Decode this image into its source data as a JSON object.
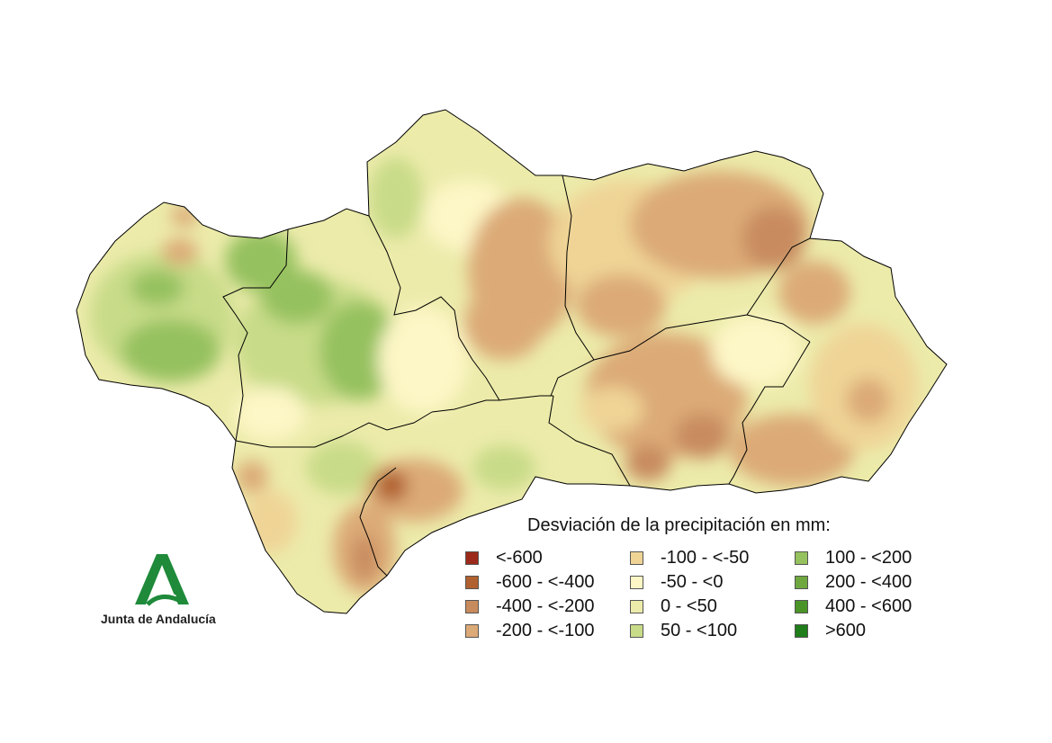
{
  "legend": {
    "title": "Desviación de la precipitación en mm:",
    "items": [
      {
        "label": "<-600",
        "color": "#9b2a1a"
      },
      {
        "label": "-600 - <-400",
        "color": "#b1602f"
      },
      {
        "label": "-400 - <-200",
        "color": "#c88b5e"
      },
      {
        "label": "-200 - <-100",
        "color": "#dcaa77"
      },
      {
        "label": "-100 - <-50",
        "color": "#efd496"
      },
      {
        "label": "-50 - <0",
        "color": "#fdf6c6"
      },
      {
        "label": "0 - <50",
        "color": "#ecebaa"
      },
      {
        "label": "50 - <100",
        "color": "#c8db88"
      },
      {
        "label": "100 - <200",
        "color": "#95c15e"
      },
      {
        "label": "200 - <400",
        "color": "#6fa83f"
      },
      {
        "label": "400 - <600",
        "color": "#4a9427"
      },
      {
        "label": ">600",
        "color": "#1f7d1a"
      }
    ]
  },
  "logo": {
    "text": "Junta de Andalucía",
    "color": "#1e8a3a"
  }
}
